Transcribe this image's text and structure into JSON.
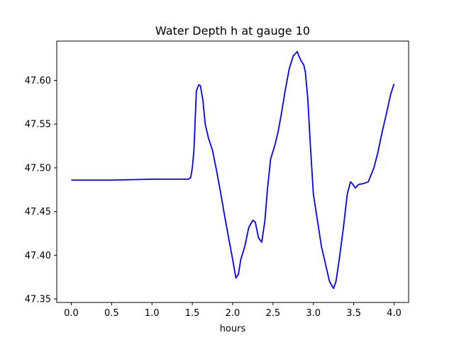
{
  "chart_data": {
    "type": "line",
    "title": "Water Depth h at gauge 10",
    "xlabel": "hours",
    "ylabel": "",
    "xlim": [
      -0.18,
      4.18
    ],
    "ylim": [
      47.346,
      47.645
    ],
    "xticks": [
      0.0,
      0.5,
      1.0,
      1.5,
      2.0,
      2.5,
      3.0,
      3.5,
      4.0
    ],
    "xtick_labels": [
      "0.0",
      "0.5",
      "1.0",
      "1.5",
      "2.0",
      "2.5",
      "3.0",
      "3.5",
      "4.0"
    ],
    "yticks": [
      47.35,
      47.4,
      47.45,
      47.5,
      47.55,
      47.6
    ],
    "ytick_labels": [
      "47.35",
      "47.40",
      "47.45",
      "47.50",
      "47.55",
      "47.60"
    ],
    "grid": false,
    "series": [
      {
        "name": "",
        "color": "#0000ff",
        "x": [
          0.0,
          0.5,
          1.0,
          1.1,
          1.2,
          1.3,
          1.45,
          1.48,
          1.5,
          1.52,
          1.55,
          1.58,
          1.6,
          1.63,
          1.66,
          1.7,
          1.75,
          1.8,
          1.85,
          1.9,
          1.95,
          2.0,
          2.04,
          2.07,
          2.1,
          2.15,
          2.2,
          2.25,
          2.28,
          2.32,
          2.36,
          2.4,
          2.43,
          2.47,
          2.52,
          2.56,
          2.6,
          2.65,
          2.7,
          2.75,
          2.8,
          2.82,
          2.85,
          2.88,
          2.9,
          2.93,
          2.96,
          3.0,
          3.05,
          3.1,
          3.15,
          3.2,
          3.25,
          3.28,
          3.32,
          3.37,
          3.42,
          3.46,
          3.49,
          3.52,
          3.56,
          3.62,
          3.68,
          3.75,
          3.8,
          3.85,
          3.9,
          3.96,
          4.0
        ],
        "y": [
          47.486,
          47.486,
          47.487,
          47.487,
          47.487,
          47.487,
          47.487,
          47.489,
          47.5,
          47.52,
          47.588,
          47.595,
          47.594,
          47.578,
          47.55,
          47.534,
          47.52,
          47.497,
          47.472,
          47.445,
          47.42,
          47.395,
          47.374,
          47.378,
          47.395,
          47.41,
          47.432,
          47.44,
          47.438,
          47.42,
          47.415,
          47.44,
          47.475,
          47.51,
          47.525,
          47.54,
          47.56,
          47.588,
          47.613,
          47.628,
          47.633,
          47.628,
          47.622,
          47.618,
          47.61,
          47.58,
          47.53,
          47.47,
          47.44,
          47.41,
          47.39,
          47.37,
          47.362,
          47.37,
          47.395,
          47.43,
          47.47,
          47.484,
          47.481,
          47.477,
          47.481,
          47.482,
          47.484,
          47.5,
          47.518,
          47.54,
          47.56,
          47.585,
          47.596
        ]
      }
    ]
  }
}
